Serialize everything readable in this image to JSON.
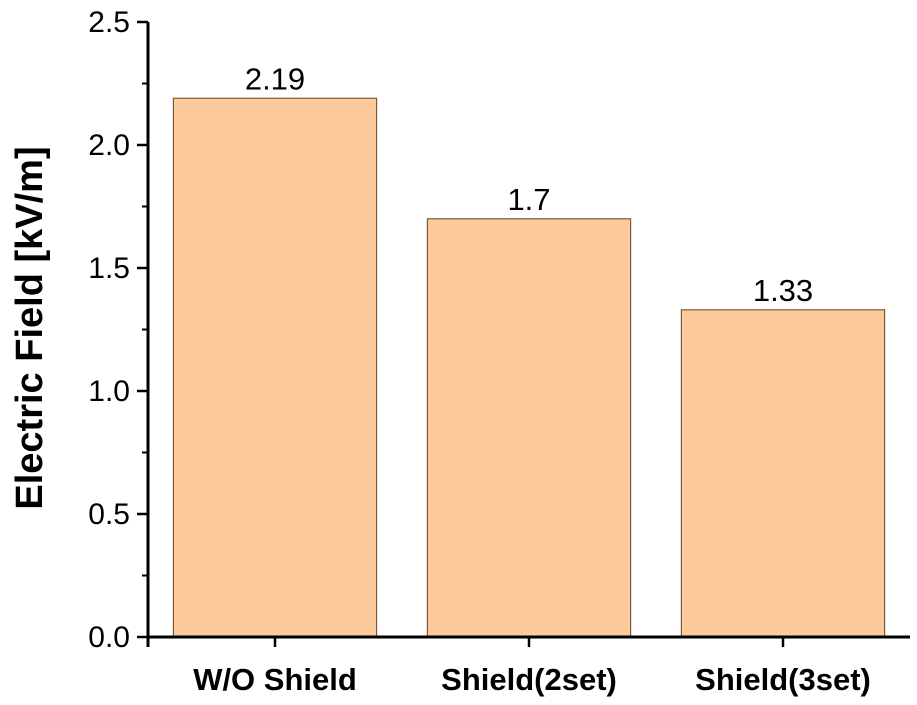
{
  "chart_data": {
    "type": "bar",
    "title": "",
    "xlabel": "",
    "ylabel": "Electric Field [kV/m]",
    "categories": [
      "W/O Shield",
      "Shield(2set)",
      "Shield(3set)"
    ],
    "values": [
      2.19,
      1.7,
      1.33
    ],
    "data_labels": [
      "2.19",
      "1.7",
      "1.33"
    ],
    "ylim": [
      0,
      2.5
    ],
    "yticks": [
      0.0,
      0.5,
      1.0,
      1.5,
      2.0,
      2.5
    ],
    "ytick_labels": [
      "0.0",
      "0.5",
      "1.0",
      "1.5",
      "2.0",
      "2.5"
    ],
    "grid": false,
    "legend": "none",
    "colors": {
      "bar_fill": "#fdcb9b",
      "bar_stroke": "#7a5a3a",
      "axis": "#000000"
    }
  }
}
